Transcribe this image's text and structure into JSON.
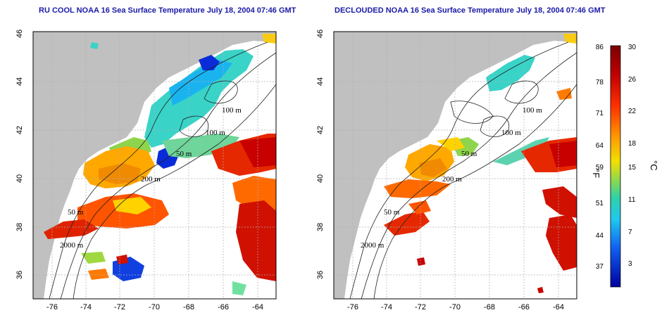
{
  "panels": [
    {
      "title": "RU COOL NOAA 16 Sea Surface Temperature July 18, 2004 07:46 GMT",
      "contour_labels": [
        "100 m",
        "100 m",
        "50 m",
        "200 m",
        "50 m",
        "2000 m"
      ]
    },
    {
      "title": "DECLOUDED NOAA 16 Sea Surface Temperature July 18, 2004 07:46 GMT",
      "contour_labels": [
        "100 m",
        "100 m",
        "50 m",
        "200 m",
        "50 m",
        "2000 m"
      ]
    }
  ],
  "axes": {
    "lon_ticks": [
      "-76",
      "-74",
      "-72",
      "-70",
      "-68",
      "-66",
      "-64"
    ],
    "lat_ticks": [
      "36",
      "38",
      "40",
      "42",
      "44",
      "46"
    ]
  },
  "colorbar": {
    "fahrenheit_ticks": [
      "86",
      "78",
      "71",
      "64",
      "59",
      "51",
      "44",
      "37"
    ],
    "celsius_ticks": [
      "30",
      "26",
      "22",
      "18",
      "15",
      "11",
      "7",
      "3"
    ],
    "fahrenheit_unit": "°F",
    "celsius_unit": "°C"
  },
  "colors": {
    "land": "#c0c0c0",
    "ocean_bg": "#ffffff",
    "grid": "#b0b0b0",
    "title": "#1a1aa8"
  }
}
